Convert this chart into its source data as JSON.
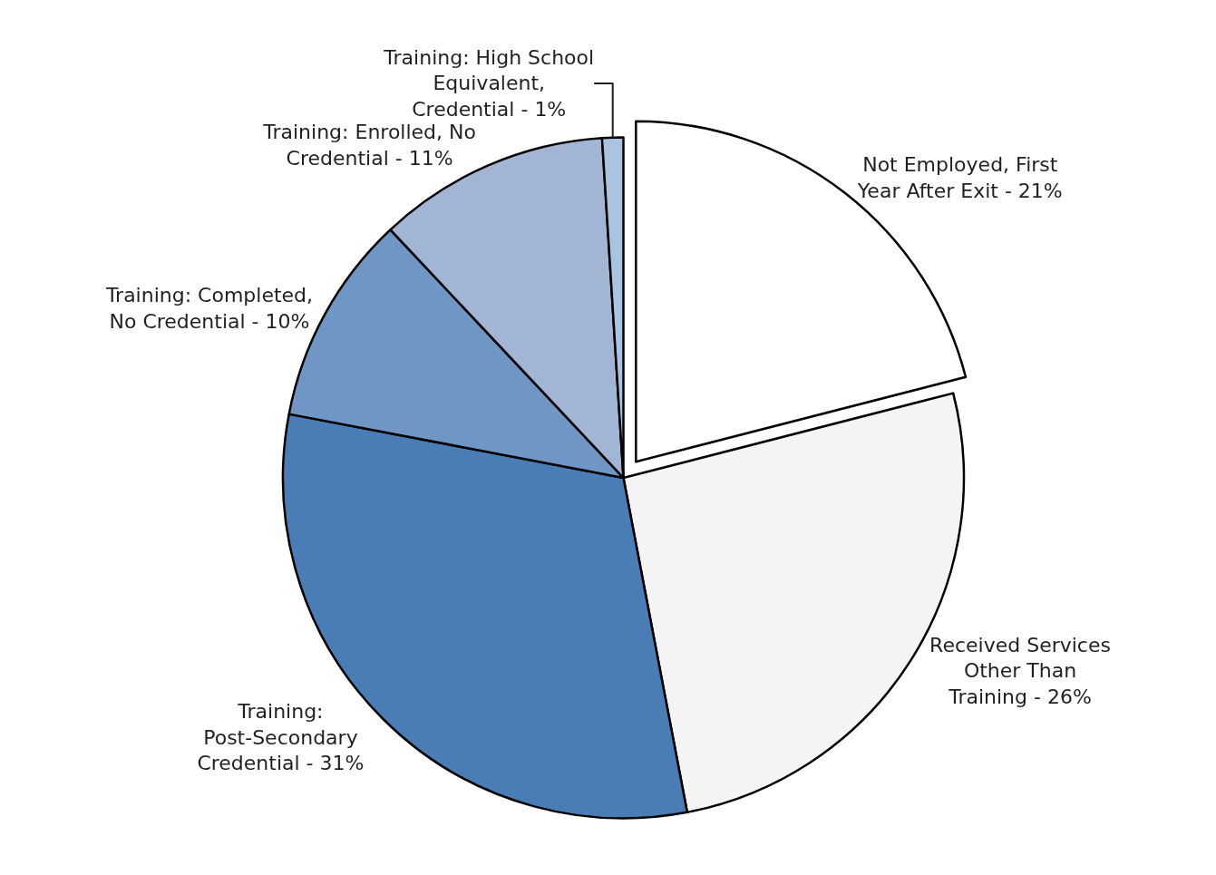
{
  "chart_data": {
    "type": "pie",
    "categories": [
      "Not Employed, First Year After Exit",
      "Received Services Other Than Training",
      "Training: Post-Secondary Credential",
      "Training: Completed, No Credential",
      "Training: Enrolled, No Credential",
      "Training: High School Equivalent, Credential"
    ],
    "values": [
      21,
      26,
      31,
      10,
      11,
      1
    ],
    "value_labels": [
      "21%",
      "26%",
      "31%",
      "10%",
      "11%",
      "1%"
    ],
    "colors": [
      "#ffffff",
      "#f4f4f4",
      "#4a7db5",
      "#7096c6",
      "#a3b5d4",
      "#a8c4e0"
    ],
    "legend": false
  }
}
